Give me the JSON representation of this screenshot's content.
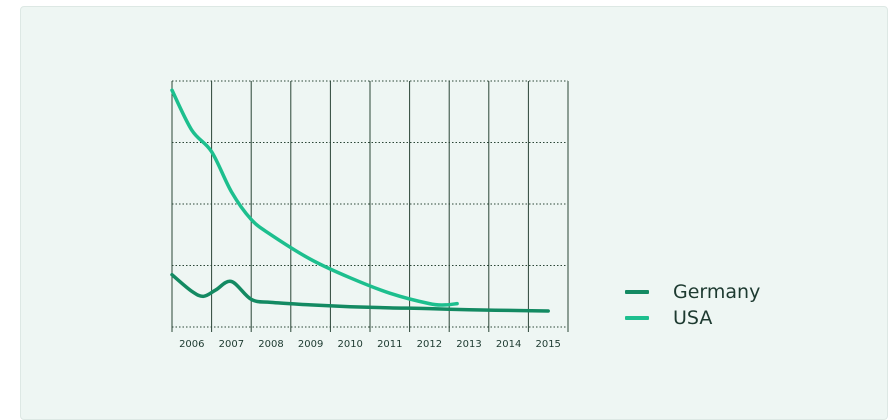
{
  "colors": {
    "background": "#eef6f3",
    "grid": "#2a4536",
    "germany": "#138a62",
    "usa": "#1dbf8e",
    "text": "#1d3a30"
  },
  "chart_data": {
    "type": "line",
    "title": "",
    "xlabel": "",
    "ylabel": "",
    "x": [
      2006,
      2007,
      2008,
      2009,
      2010,
      2011,
      2012,
      2013,
      2014,
      2015
    ],
    "tick_labels": [
      "2006",
      "2007",
      "2008",
      "2009",
      "2010",
      "2011",
      "2012",
      "2013",
      "2014",
      "2015"
    ],
    "xlim": [
      2005.5,
      2015.5
    ],
    "ylim": [
      0,
      4
    ],
    "grid": true,
    "legend_position": "right",
    "series": [
      {
        "name": "Germany",
        "x": [
          2005.5,
          2006.0,
          2006.3,
          2006.6,
          2007.0,
          2007.5,
          2008.0,
          2009.0,
          2010.0,
          2011.0,
          2012.0,
          2013.0,
          2014.0,
          2015.0
        ],
        "values": [
          0.85,
          0.58,
          0.5,
          0.6,
          0.74,
          0.45,
          0.4,
          0.36,
          0.33,
          0.31,
          0.3,
          0.28,
          0.27,
          0.26
        ]
      },
      {
        "name": "USA",
        "x": [
          2005.5,
          2006.0,
          2006.5,
          2007.0,
          2007.5,
          2008.0,
          2009.0,
          2010.0,
          2011.0,
          2012.0,
          2012.4,
          2012.7
        ],
        "values": [
          3.85,
          3.2,
          2.85,
          2.2,
          1.75,
          1.5,
          1.1,
          0.8,
          0.55,
          0.38,
          0.36,
          0.38
        ]
      }
    ]
  },
  "legend": {
    "items": [
      {
        "label": "Germany",
        "color": "#138a62"
      },
      {
        "label": "USA",
        "color": "#1dbf8e"
      }
    ]
  }
}
